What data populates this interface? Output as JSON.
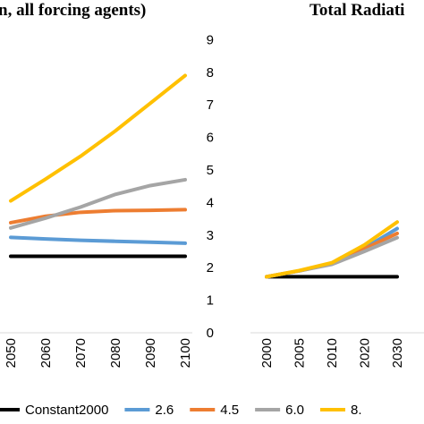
{
  "chart_data": [
    {
      "type": "line",
      "title": "n, all forcing agents)",
      "xlabel": "",
      "ylabel": "",
      "categories": [
        "2050",
        "2060",
        "2070",
        "2080",
        "2090",
        "2100"
      ],
      "series": [
        {
          "name": "Constant2000",
          "color": "#000000",
          "values": [
            2.35,
            2.35,
            2.35,
            2.35,
            2.35,
            2.35
          ]
        },
        {
          "name": "2.6",
          "color": "#5B9BD5",
          "values": [
            2.93,
            2.88,
            2.84,
            2.81,
            2.78,
            2.75
          ]
        },
        {
          "name": "4.5",
          "color": "#ED7D31",
          "values": [
            3.38,
            3.58,
            3.7,
            3.75,
            3.76,
            3.78
          ]
        },
        {
          "name": "6.0",
          "color": "#A5A5A5",
          "values": [
            3.22,
            3.52,
            3.86,
            4.25,
            4.52,
            4.7
          ]
        },
        {
          "name": "8.",
          "color": "#FFC000",
          "values": [
            4.05,
            4.72,
            5.42,
            6.2,
            7.05,
            7.9
          ]
        }
      ]
    },
    {
      "type": "line",
      "title": "Total Radiati",
      "xlabel": "",
      "ylabel": "",
      "ylim": [
        0,
        9
      ],
      "yticks": [
        "0",
        "1",
        "2",
        "3",
        "4",
        "5",
        "6",
        "7",
        "8",
        "9"
      ],
      "categories": [
        "2000",
        "2005",
        "2010",
        "2020",
        "2030"
      ],
      "series": [
        {
          "name": "Constant2000",
          "color": "#000000",
          "values": [
            1.72,
            1.72,
            1.72,
            1.72,
            1.72
          ]
        },
        {
          "name": "2.6",
          "color": "#5B9BD5",
          "values": [
            1.72,
            1.9,
            2.12,
            2.6,
            3.2
          ]
        },
        {
          "name": "4.5",
          "color": "#ED7D31",
          "values": [
            1.72,
            1.9,
            2.12,
            2.58,
            3.05
          ]
        },
        {
          "name": "6.0",
          "color": "#A5A5A5",
          "values": [
            1.72,
            1.9,
            2.1,
            2.5,
            2.92
          ]
        },
        {
          "name": "8.",
          "color": "#FFC000",
          "values": [
            1.72,
            1.91,
            2.15,
            2.7,
            3.4
          ]
        }
      ]
    }
  ],
  "legend": {
    "items": [
      {
        "label": "Constant2000",
        "color": "#000000"
      },
      {
        "label": "2.6",
        "color": "#5B9BD5"
      },
      {
        "label": "4.5",
        "color": "#ED7D31"
      },
      {
        "label": "6.0",
        "color": "#A5A5A5"
      },
      {
        "label": "8.",
        "color": "#FFC000"
      }
    ]
  }
}
